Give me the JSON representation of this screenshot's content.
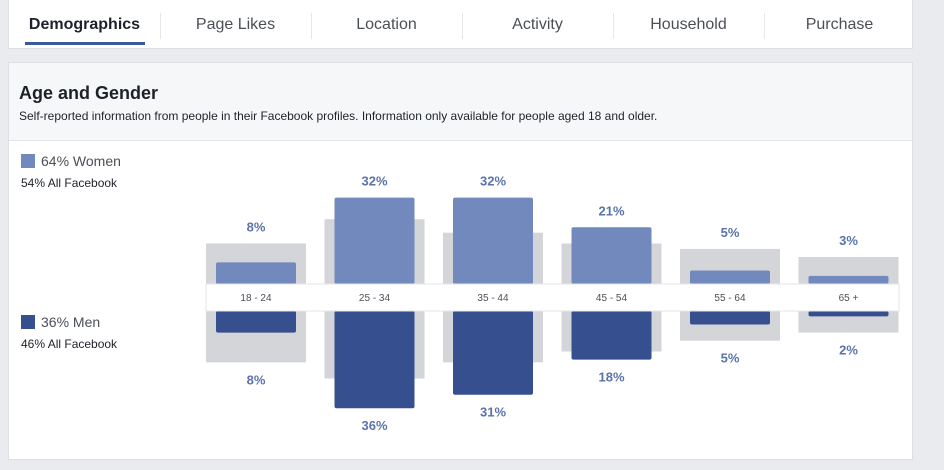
{
  "tabs": [
    {
      "label": "Demographics",
      "active": true
    },
    {
      "label": "Page Likes",
      "active": false
    },
    {
      "label": "Location",
      "active": false
    },
    {
      "label": "Activity",
      "active": false
    },
    {
      "label": "Household",
      "active": false
    },
    {
      "label": "Purchase",
      "active": false
    }
  ],
  "panel": {
    "title": "Age and Gender",
    "subtitle": "Self-reported information from people in their Facebook profiles. Information only available for people aged 18 and older."
  },
  "legend": {
    "women": {
      "main": "64% Women",
      "sub": "54% All Facebook"
    },
    "men": {
      "main": "36% Men",
      "sub": "46% All Facebook"
    }
  },
  "colors": {
    "women": "#7189bd",
    "men": "#354f8f",
    "benchmark": "#d3d5d9",
    "label": "#5a73ac",
    "tick_label": "#4b4f56"
  },
  "chart_data": {
    "type": "bar",
    "categories": [
      "18 - 24",
      "25 - 34",
      "35 - 44",
      "45 - 54",
      "55 - 64",
      "65 +"
    ],
    "series": [
      {
        "name": "Women",
        "values": [
          8,
          32,
          32,
          21,
          5,
          3
        ],
        "labels": [
          "8%",
          "32%",
          "32%",
          "21%",
          "5%",
          "3%"
        ]
      },
      {
        "name": "Men",
        "values": [
          8,
          36,
          31,
          18,
          5,
          2
        ],
        "labels": [
          "8%",
          "36%",
          "31%",
          "18%",
          "5%",
          "2%"
        ]
      }
    ],
    "benchmark": {
      "name": "All Facebook",
      "women_values": [
        15,
        24,
        19,
        15,
        13,
        10
      ],
      "men_values": [
        19,
        25,
        19,
        15,
        11,
        8
      ]
    },
    "ylim": [
      0,
      36
    ],
    "legend_position": "left"
  }
}
